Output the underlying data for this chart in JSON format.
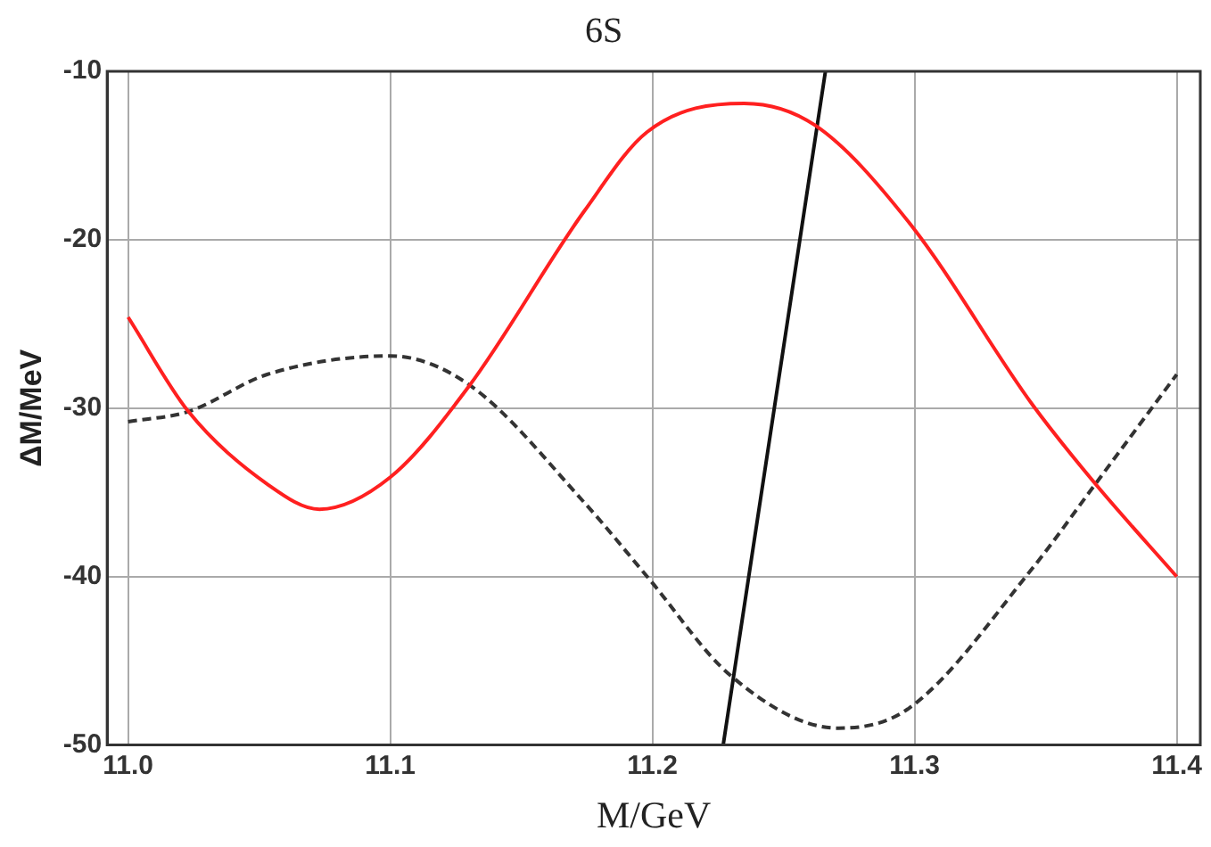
{
  "chart_data": {
    "type": "line",
    "title": "6S",
    "xlabel": "M/GeV",
    "ylabel": "ΔM/MeV",
    "xlim": [
      10.992,
      11.409
    ],
    "ylim": [
      -50,
      -10
    ],
    "xticks": [
      {
        "value": 11.0,
        "label": "11.0"
      },
      11.1,
      11.2,
      11.3,
      11.4
    ],
    "yticks": [
      -50,
      -40,
      -30,
      -20,
      -10
    ],
    "grid": true,
    "legend": false,
    "marker": "none",
    "series": [
      {
        "color": "#ff2020",
        "line_style": "solid",
        "x": [
          11.0,
          11.023,
          11.053,
          11.073,
          11.1,
          11.13,
          11.174,
          11.198,
          11.235,
          11.262,
          11.298,
          11.345,
          11.369,
          11.4
        ],
        "values": [
          -24.6,
          -30.2,
          -34.5,
          -36.0,
          -34.1,
          -28.7,
          -18.3,
          -13.6,
          -11.9,
          -13.2,
          -19.0,
          -29.8,
          -34.5,
          -40.0
        ]
      },
      {
        "color": "#333333",
        "line_style": "dashed",
        "x": [
          11.0,
          11.023,
          11.053,
          11.1,
          11.13,
          11.174,
          11.198,
          11.23,
          11.271,
          11.298,
          11.345,
          11.369,
          11.4
        ],
        "values": [
          -30.8,
          -30.2,
          -28.0,
          -26.9,
          -28.6,
          -35.6,
          -40.0,
          -45.9,
          -49.0,
          -47.8,
          -39.5,
          -34.5,
          -28.0
        ]
      },
      {
        "color": "#111111",
        "line_style": "solid",
        "x": [
          11.227,
          11.266
        ],
        "values": [
          -50,
          -10
        ]
      }
    ]
  }
}
